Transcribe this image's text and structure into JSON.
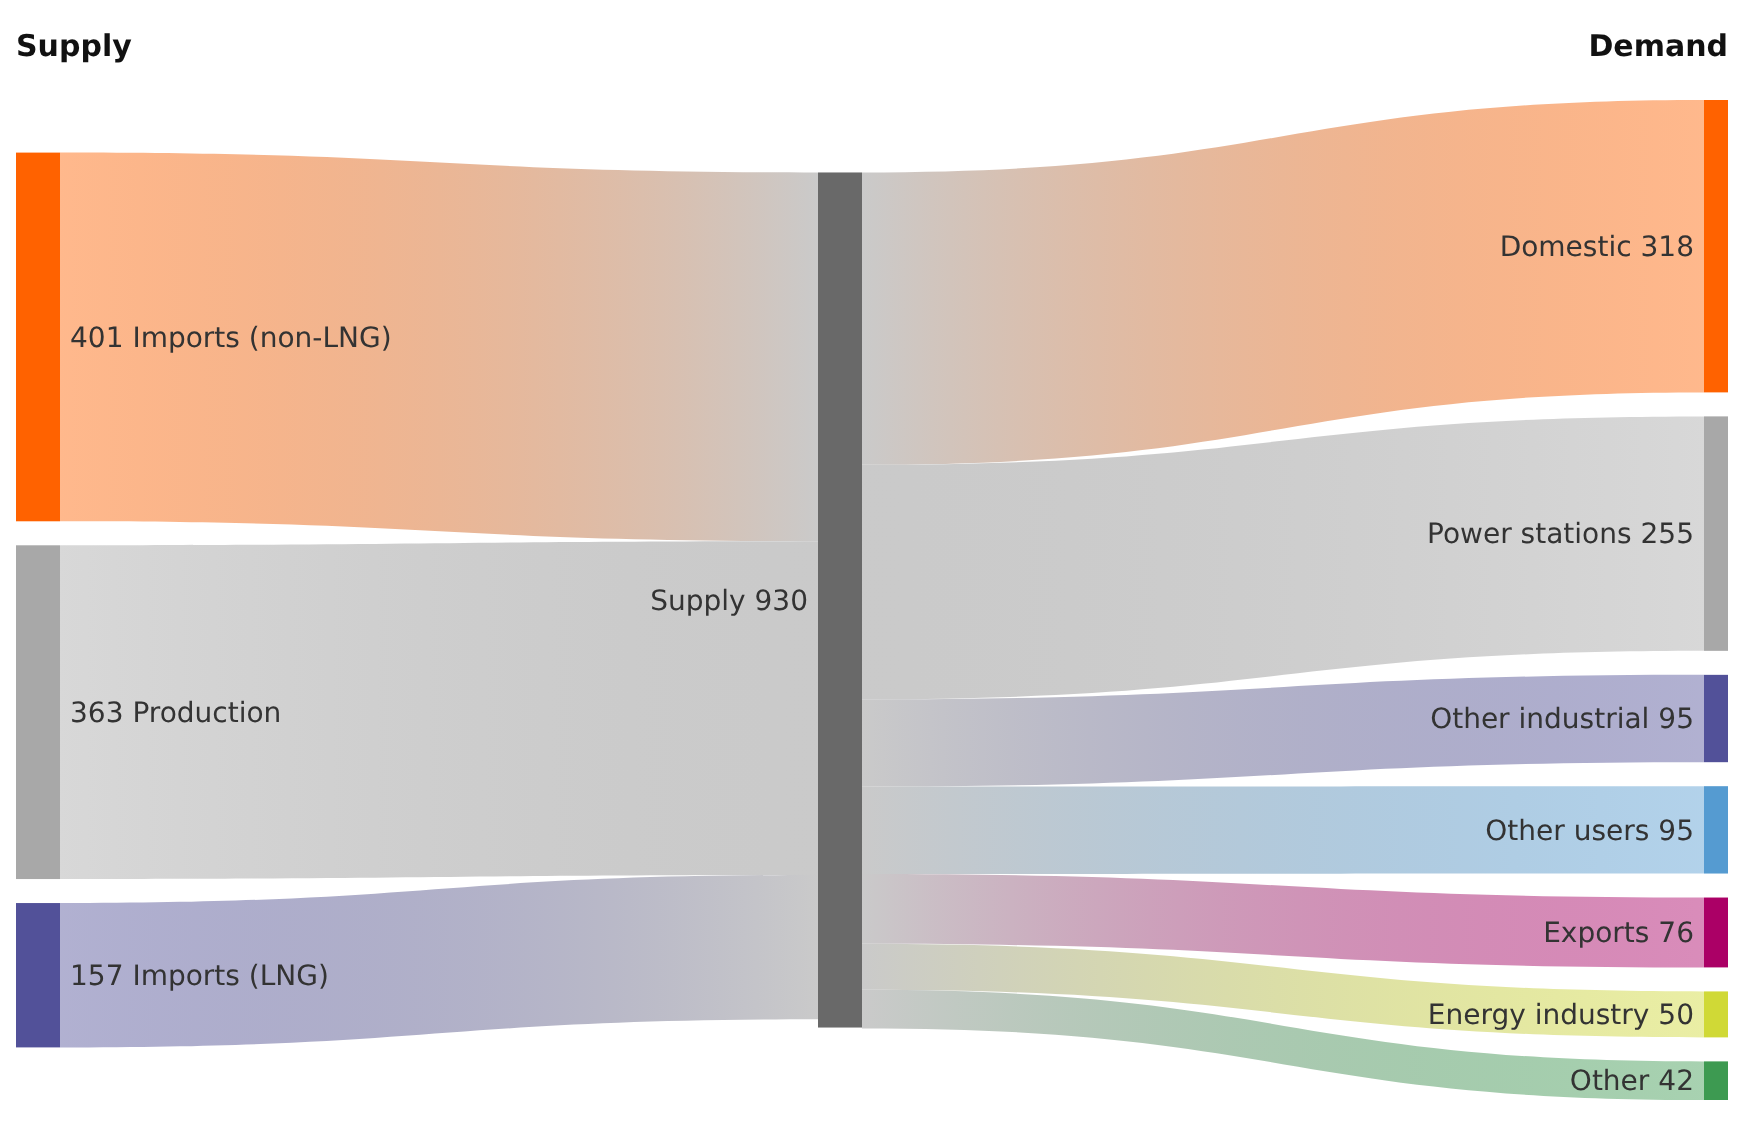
{
  "chart_data": {
    "type": "other",
    "data_labels": true,
    "categories": [
      "Imports (non-LNG)",
      "Production",
      "Imports (LNG)",
      "Supply",
      "Domestic",
      "Power stations",
      "Other industrial",
      "Other users",
      "Exports",
      "Energy industry",
      "Other"
    ],
    "colors": [
      "#ff6200",
      "#a8a8a8",
      "#525199",
      "#696969",
      "#ff6200",
      "#a8a8a8",
      "#525199",
      "#559bd1",
      "#ab0066",
      "#d0d936",
      "#3d9a51"
    ],
    "series": [
      {
        "name": "Supply",
        "values": [
          401,
          363,
          157,
          null,
          null,
          null,
          null,
          null,
          null,
          null,
          null
        ]
      },
      {
        "values": [
          null,
          null,
          null,
          930,
          null,
          null,
          null,
          null,
          null,
          null,
          null
        ]
      },
      {
        "name": "Demand",
        "values": [
          null,
          null,
          null,
          null,
          318,
          255,
          95,
          95,
          76,
          50,
          42
        ]
      }
    ]
  }
}
